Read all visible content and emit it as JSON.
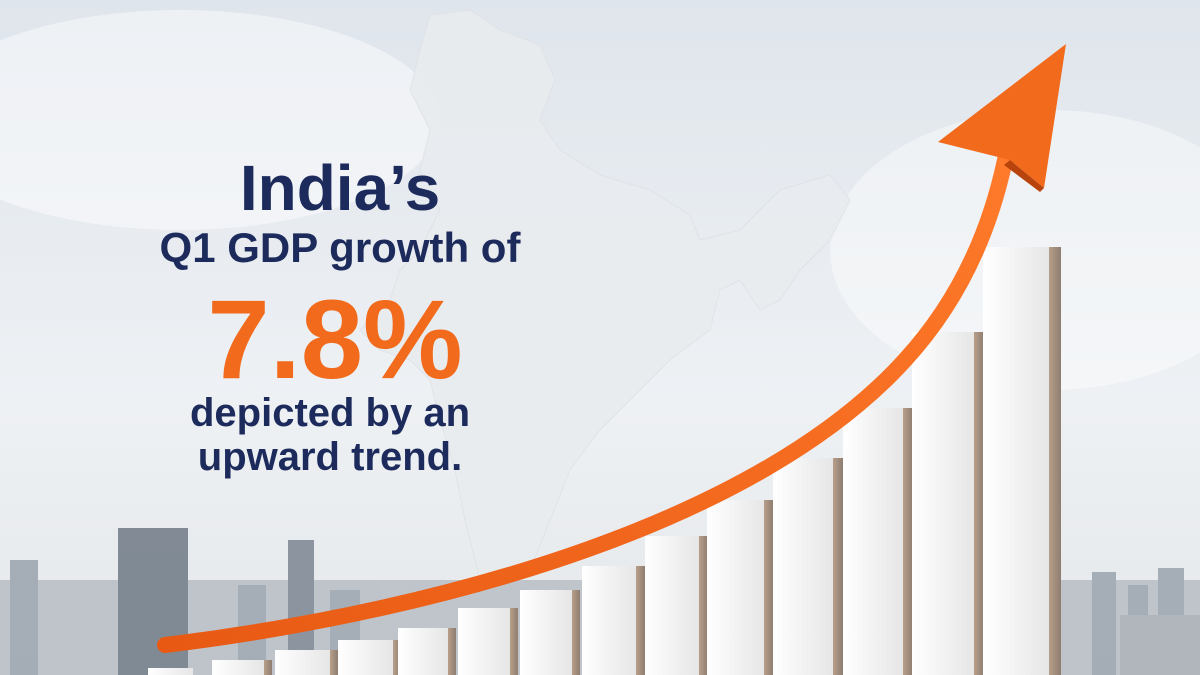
{
  "headline": {
    "line1": "India’s",
    "line2": "Q1 GDP growth of",
    "figure": "7.8%",
    "line3": "depicted by an",
    "line4": "upward trend."
  }
}
